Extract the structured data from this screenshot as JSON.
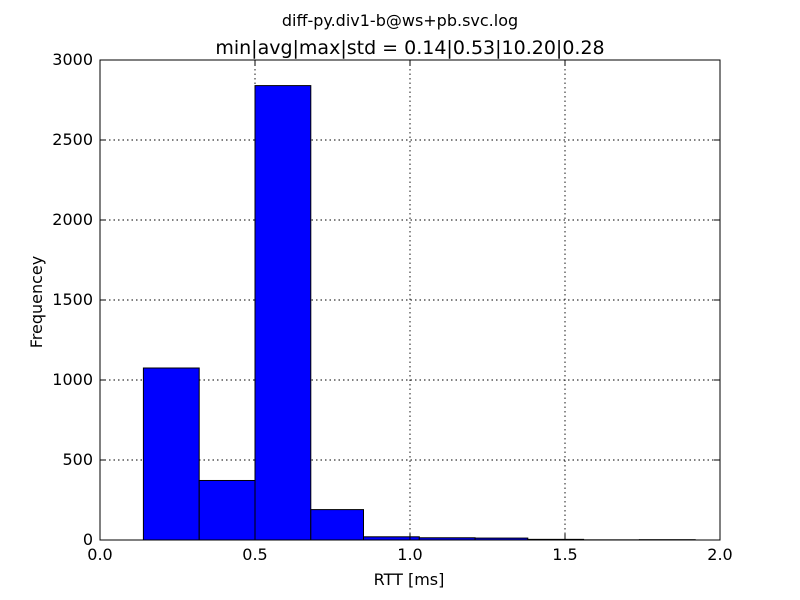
{
  "chart_data": {
    "type": "bar",
    "suptitle": "diff-py.div1-b@ws+pb.svc.log",
    "title": "min|avg|max|std = 0.14|0.53|10.20|0.28",
    "xlabel": "RTT [ms]",
    "ylabel": "Frequencey",
    "xlim": [
      0.0,
      2.0
    ],
    "ylim": [
      0,
      3000
    ],
    "xticks": [
      "0.0",
      "0.5",
      "1.0",
      "1.5",
      "2.0"
    ],
    "xtick_values": [
      0.0,
      0.5,
      1.0,
      1.5,
      2.0
    ],
    "yticks": [
      "0",
      "500",
      "1000",
      "1500",
      "2000",
      "2500",
      "3000"
    ],
    "ytick_values": [
      0,
      500,
      1000,
      1500,
      2000,
      2500,
      3000
    ],
    "grid": true,
    "bar_color": "#0000ff",
    "bins": [
      {
        "x0": 0.14,
        "x1": 0.32,
        "value": 1075
      },
      {
        "x0": 0.32,
        "x1": 0.5,
        "value": 372
      },
      {
        "x0": 0.5,
        "x1": 0.68,
        "value": 2840
      },
      {
        "x0": 0.68,
        "x1": 0.85,
        "value": 190
      },
      {
        "x0": 0.85,
        "x1": 1.03,
        "value": 20
      },
      {
        "x0": 1.03,
        "x1": 1.21,
        "value": 14
      },
      {
        "x0": 1.21,
        "x1": 1.38,
        "value": 12
      },
      {
        "x0": 1.38,
        "x1": 1.56,
        "value": 4
      },
      {
        "x0": 1.56,
        "x1": 1.74,
        "value": 1
      },
      {
        "x0": 1.74,
        "x1": 1.92,
        "value": 2
      }
    ]
  }
}
